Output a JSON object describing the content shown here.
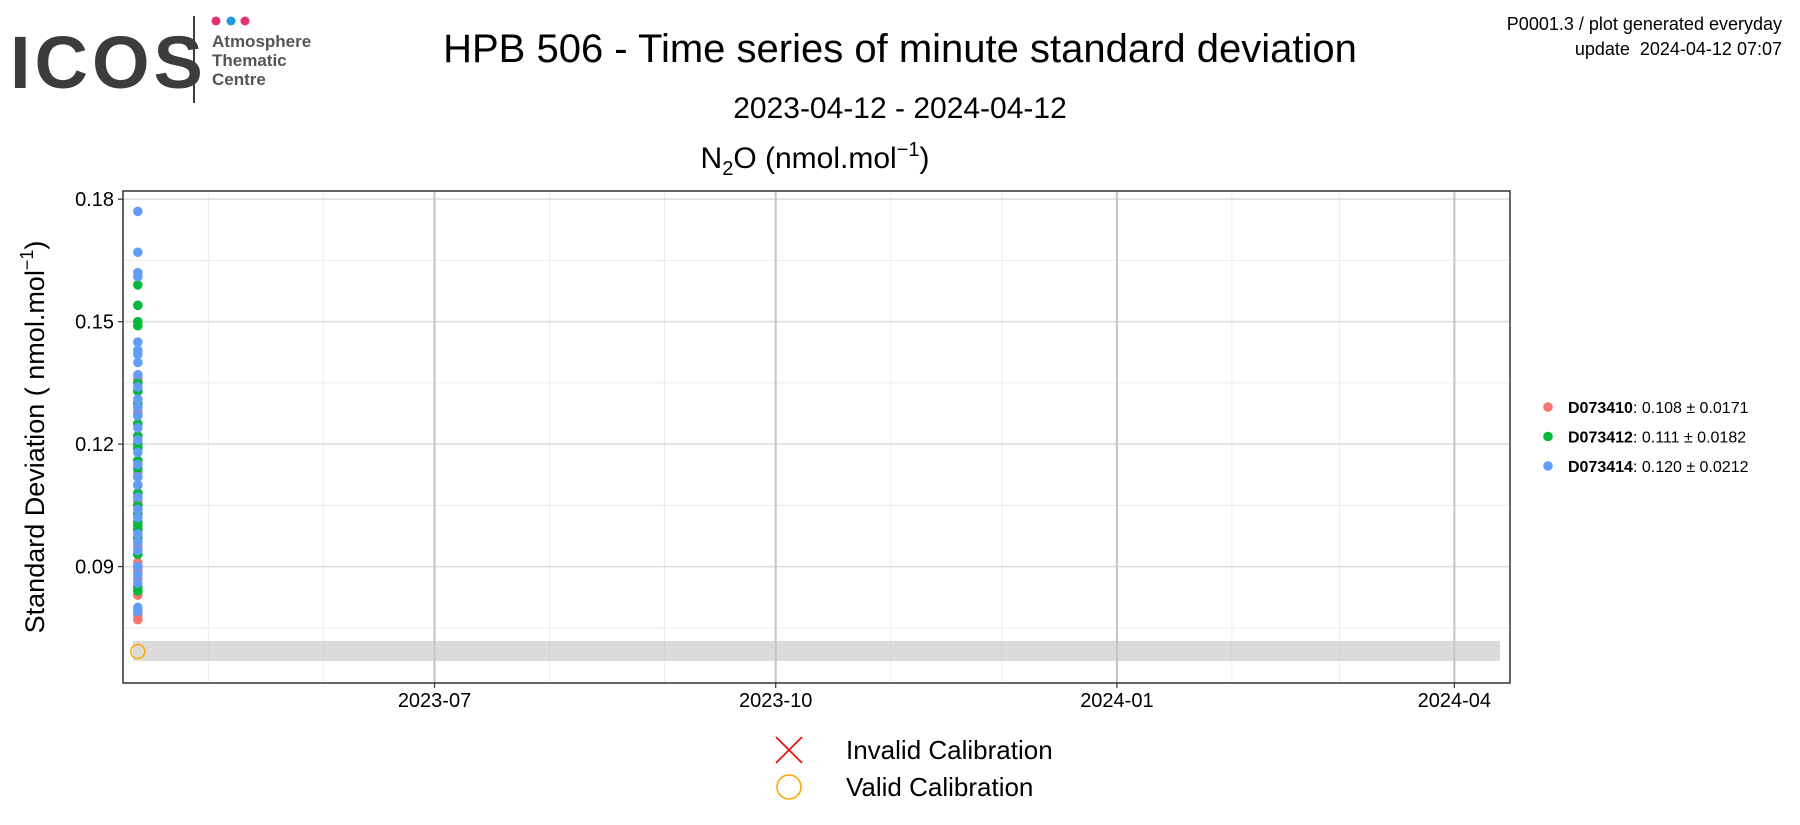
{
  "logo": {
    "text": "ICOS",
    "lines": [
      "Atmosphere",
      "Thematic",
      "Centre"
    ]
  },
  "header_right": [
    "P0001.3 / plot generated everyday",
    "update  2024-04-12 07:07"
  ],
  "chart_data": {
    "type": "scatter",
    "title": "HPB 506 - Time series of minute standard deviation",
    "subtitle": "2023-04-12 - 2024-04-12",
    "panel_title": [
      "N",
      "2",
      "O (nmol.mol",
      "−1",
      ")"
    ],
    "y_label": [
      "Standard Deviation ( nmol.mol",
      "−1",
      ")"
    ],
    "xlim": [
      "2023-04-08",
      "2024-04-16"
    ],
    "xticks": [
      {
        "value": "2023-07-01",
        "label": "2023-07"
      },
      {
        "value": "2023-10-01",
        "label": "2023-10"
      },
      {
        "value": "2024-01-01",
        "label": "2024-01"
      },
      {
        "value": "2024-04-01",
        "label": "2024-04"
      }
    ],
    "ylim": [
      0.0615,
      0.182
    ],
    "yticks": [
      0.09,
      0.12,
      0.15,
      0.18
    ],
    "grid": true,
    "band": [
      0.0669,
      0.0718
    ],
    "legend_position": "right",
    "series": [
      {
        "name": "D073410",
        "legend_text": ": 0.108 ± 0.0171",
        "color": "#F8766D",
        "x": [
          "2023-04-12",
          "2023-04-12",
          "2023-04-12",
          "2023-04-12",
          "2023-04-12",
          "2023-04-12",
          "2023-04-12",
          "2023-04-12",
          "2023-04-12",
          "2023-04-12",
          "2023-04-12",
          "2023-04-12",
          "2023-04-12",
          "2023-04-12",
          "2023-04-12",
          "2023-04-12",
          "2023-04-12",
          "2023-04-12",
          "2023-04-12",
          "2023-04-12",
          "2023-04-12",
          "2023-04-12",
          "2023-04-12",
          "2023-04-12",
          "2023-04-12",
          "2023-04-12",
          "2023-04-12",
          "2023-04-12"
        ],
        "values": [
          0.077,
          0.078,
          0.079,
          0.083,
          0.085,
          0.087,
          0.089,
          0.09,
          0.091,
          0.093,
          0.095,
          0.097,
          0.099,
          0.101,
          0.103,
          0.105,
          0.106,
          0.108,
          0.11,
          0.113,
          0.116,
          0.119,
          0.122,
          0.125,
          0.128,
          0.13,
          0.133,
          0.136
        ]
      },
      {
        "name": "D073412",
        "legend_text": ": 0.111 ± 0.0182",
        "color": "#00BA38",
        "x": [
          "2023-04-12",
          "2023-04-12",
          "2023-04-12",
          "2023-04-12",
          "2023-04-12",
          "2023-04-12",
          "2023-04-12",
          "2023-04-12",
          "2023-04-12",
          "2023-04-12",
          "2023-04-12",
          "2023-04-12",
          "2023-04-12",
          "2023-04-12",
          "2023-04-12",
          "2023-04-12",
          "2023-04-12",
          "2023-04-12",
          "2023-04-12",
          "2023-04-12",
          "2023-04-12",
          "2023-04-12",
          "2023-04-12",
          "2023-04-12",
          "2023-04-12",
          "2023-04-12",
          "2023-04-12"
        ],
        "values": [
          0.084,
          0.085,
          0.093,
          0.097,
          0.099,
          0.1,
          0.101,
          0.103,
          0.105,
          0.107,
          0.108,
          0.11,
          0.112,
          0.114,
          0.116,
          0.119,
          0.12,
          0.122,
          0.125,
          0.127,
          0.13,
          0.133,
          0.135,
          0.149,
          0.15,
          0.154,
          0.159
        ]
      },
      {
        "name": "D073414",
        "legend_text": ": 0.120 ± 0.0212",
        "color": "#619CFF",
        "x": [
          "2023-04-12",
          "2023-04-12",
          "2023-04-12",
          "2023-04-12",
          "2023-04-12",
          "2023-04-12",
          "2023-04-12",
          "2023-04-12",
          "2023-04-12",
          "2023-04-12",
          "2023-04-12",
          "2023-04-12",
          "2023-04-12",
          "2023-04-12",
          "2023-04-12",
          "2023-04-12",
          "2023-04-12",
          "2023-04-12",
          "2023-04-12",
          "2023-04-12",
          "2023-04-12",
          "2023-04-12",
          "2023-04-12",
          "2023-04-12",
          "2023-04-12",
          "2023-04-12",
          "2023-04-12",
          "2023-04-12",
          "2023-04-12",
          "2023-04-12"
        ],
        "values": [
          0.079,
          0.08,
          0.086,
          0.088,
          0.09,
          0.094,
          0.096,
          0.098,
          0.102,
          0.104,
          0.107,
          0.11,
          0.112,
          0.115,
          0.118,
          0.121,
          0.124,
          0.127,
          0.129,
          0.131,
          0.134,
          0.137,
          0.14,
          0.142,
          0.143,
          0.145,
          0.161,
          0.162,
          0.167,
          0.177
        ]
      }
    ],
    "calibration_legend": [
      {
        "label": "Invalid Calibration",
        "marker": "x",
        "color": "#ff0000"
      },
      {
        "label": "Valid Calibration",
        "marker": "circle",
        "color": "#FFA500"
      }
    ],
    "calibration_points": [
      {
        "x": "2023-04-12",
        "y": 0.0692,
        "marker": "circle",
        "color": "#FFA500"
      }
    ]
  }
}
